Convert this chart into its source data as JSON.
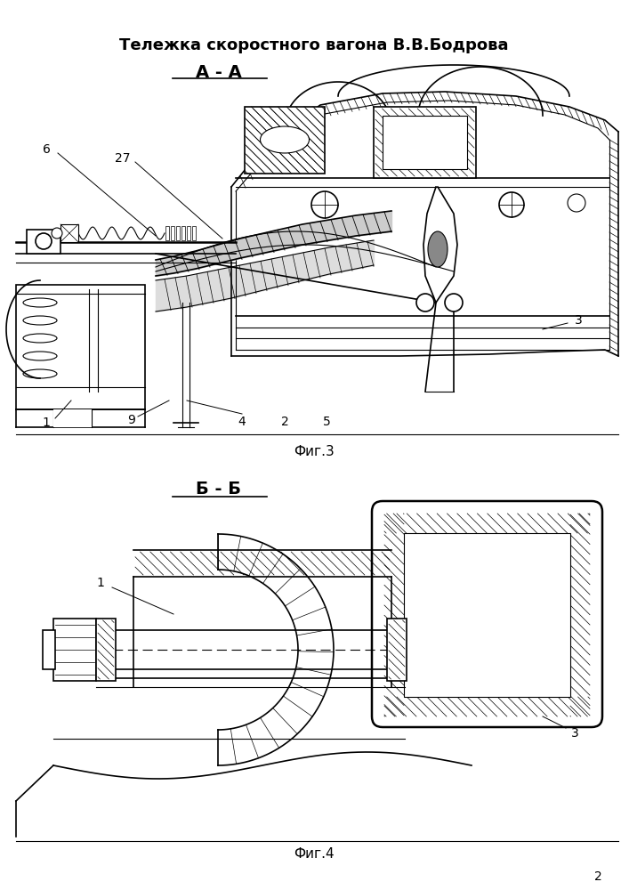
{
  "title": "Тележка скоростного вагона В.В.Бодрова",
  "fig3_label": "А - А",
  "fig4_label": "Б - Б",
  "fig3_caption": "Фиг.3",
  "fig4_caption": "Фиг.4",
  "page_number": "2",
  "line_color": "#000000",
  "hatch_color": "#000000",
  "bg_color": "#ffffff",
  "title_fontsize": 13,
  "label_fontsize": 12,
  "number_fontsize": 10,
  "caption_fontsize": 11
}
